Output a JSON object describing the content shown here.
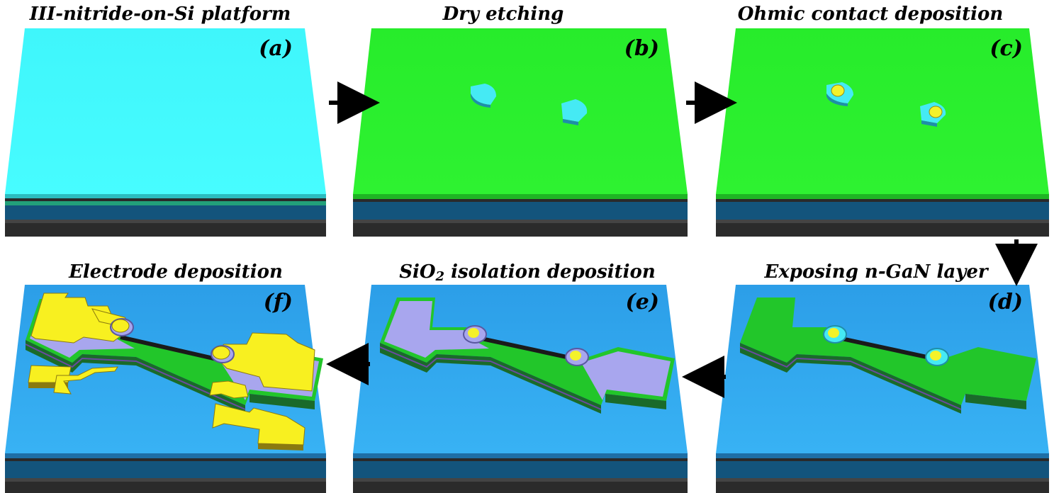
{
  "colors": {
    "top_cyan": "#40fafd",
    "top_green": "#28f02c",
    "top_blue": "#2fa8ef",
    "layer_cyan": "#2bbcc0",
    "layer_green": "#22c62a",
    "layer_dark": "#2a2a2a",
    "layer_gray": "#555555",
    "layer_navy": "#13547c",
    "mesa_cyan": "#45eaf4",
    "contact_yellow": "#f4f22a",
    "sio2_lavender": "#a8a6ee",
    "metal_yellow": "#f8f020",
    "arrow": "#000000"
  },
  "steps": [
    {
      "tag": "(a)",
      "title": "III-nitride-on-Si platform"
    },
    {
      "tag": "(b)",
      "title": "Dry etching"
    },
    {
      "tag": "(c)",
      "title": "Ohmic contact deposition"
    },
    {
      "tag": "(d)",
      "title": "Exposing n-GaN layer"
    },
    {
      "tag": "(e)",
      "title_main": "SiO",
      "title_sub": "2",
      "title_rest": " isolation deposition"
    },
    {
      "tag": "(f)",
      "title": "Electrode deposition"
    }
  ],
  "arrows": [
    {
      "from": "(a)",
      "to": "(b)",
      "direction": "right"
    },
    {
      "from": "(b)",
      "to": "(c)",
      "direction": "right"
    },
    {
      "from": "(c)",
      "to": "(d)",
      "direction": "down"
    },
    {
      "from": "(d)",
      "to": "(e)",
      "direction": "left"
    },
    {
      "from": "(e)",
      "to": "(f)",
      "direction": "left"
    }
  ]
}
